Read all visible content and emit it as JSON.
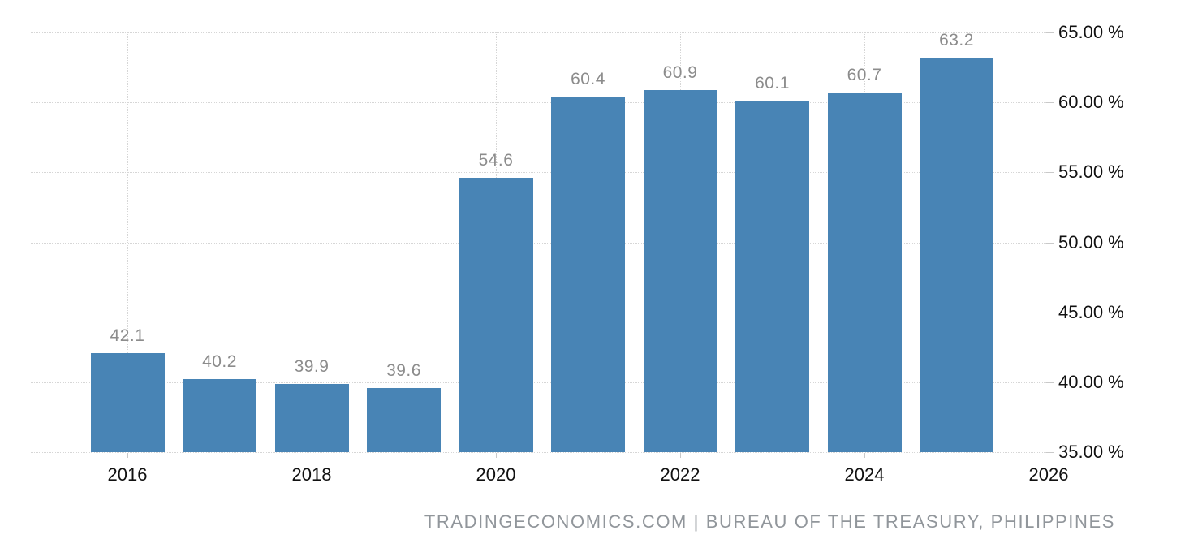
{
  "chart_data": {
    "type": "bar",
    "categories": [
      "2016",
      "2017",
      "2018",
      "2019",
      "2020",
      "2021",
      "2022",
      "2023",
      "2024",
      "2025"
    ],
    "values": [
      42.1,
      40.2,
      39.9,
      39.6,
      54.6,
      60.4,
      60.9,
      60.1,
      60.7,
      63.2
    ],
    "bar_labels": [
      "42.1",
      "40.2",
      "39.9",
      "39.6",
      "54.6",
      "60.4",
      "60.9",
      "60.1",
      "60.7",
      "63.2"
    ],
    "x_tick_labels": [
      "2016",
      "2018",
      "2020",
      "2022",
      "2024",
      "2026"
    ],
    "y_tick_labels": [
      "35.00 %",
      "40.00 %",
      "45.00 %",
      "50.00 %",
      "55.00 %",
      "60.00 %",
      "65.00 %"
    ],
    "y_axis": {
      "min": 35,
      "max": 65,
      "step": 5,
      "unit": "%",
      "side": "right"
    },
    "x_axis": {
      "first_year": 2016,
      "last_year": 2026,
      "tick_interval_years": 2
    },
    "grid": "dotted",
    "legend": false,
    "title": "",
    "xlabel": "",
    "ylabel": "",
    "colors": {
      "bar": "#4884b5",
      "value_label": "#8c8c8c",
      "axis_text": "#111111",
      "grid": "#d6d6d6",
      "tick": "#c9c9c9",
      "background": "#ffffff",
      "attribution_text": "#91969b"
    }
  },
  "footer": {
    "text": "TRADINGECONOMICS.COM | BUREAU OF THE TREASURY, PHILIPPINES"
  }
}
